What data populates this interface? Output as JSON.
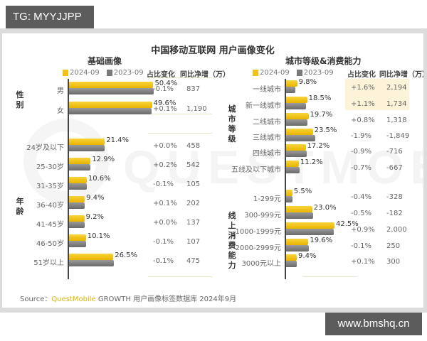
{
  "overlay": {
    "top_badge": "TG: MYYJJPP",
    "bottom_badge": "www.bmshq.cn"
  },
  "header": {
    "title": "中国移动互联网 用户画像变化",
    "left_subtitle": "基础画像",
    "right_subtitle": "城市等级&消费能力"
  },
  "legend": {
    "y2024": "2024-09",
    "y2023": "2023-09",
    "color_2024": "#f2c316",
    "color_2023": "#7a7a7a"
  },
  "columns": {
    "share_change": "占比变化",
    "net_increase": "同比净增（万）"
  },
  "groups": {
    "gender": "性别",
    "age": "年龄",
    "city": "城市等级",
    "spend": "线上消费能力"
  },
  "watermark": "QUESTMOBILE",
  "source": {
    "prefix": "Source：",
    "brand": "QuestMobile",
    "text": "GROWTH 用户画像标签数据库 2024年9月"
  },
  "chart_data": [
    {
      "type": "bar",
      "title": "基础画像 - 性别",
      "categories": [
        "男",
        "女"
      ],
      "series": [
        {
          "name": "2024-09",
          "values": [
            50.4,
            49.6
          ]
        },
        {
          "name": "2023-09",
          "values": [
            50.5,
            49.5
          ]
        }
      ],
      "labels": [
        "50.4%",
        "49.6%"
      ],
      "share_change": [
        "-0.1%",
        "+0.1%"
      ],
      "net_increase": [
        "837",
        "1,190"
      ]
    },
    {
      "type": "bar",
      "title": "基础画像 - 年龄",
      "categories": [
        "24岁及以下",
        "25-30岁",
        "31-35岁",
        "36-40岁",
        "41-45岁",
        "46-50岁",
        "51岁以上"
      ],
      "series": [
        {
          "name": "2024-09",
          "values": [
            21.4,
            12.9,
            10.6,
            9.4,
            9.2,
            10.1,
            26.5
          ]
        },
        {
          "name": "2023-09",
          "values": [
            21.4,
            12.7,
            10.7,
            9.3,
            9.2,
            10.2,
            26.6
          ]
        }
      ],
      "labels": [
        "21.4%",
        "12.9%",
        "10.6%",
        "9.4%",
        "9.2%",
        "10.1%",
        "26.5%"
      ],
      "share_change": [
        "+0.0%",
        "+0.2%",
        "-0.1%",
        "+0.1%",
        "+0.0%",
        "-0.1%",
        "-0.1%"
      ],
      "net_increase": [
        "458",
        "542",
        "105",
        "202",
        "137",
        "107",
        "475"
      ]
    },
    {
      "type": "bar",
      "title": "城市等级",
      "categories": [
        "一线城市",
        "新一线城市",
        "二线城市",
        "三线城市",
        "四线城市",
        "五线及以下城市"
      ],
      "series": [
        {
          "name": "2024-09",
          "values": [
            9.8,
            18.5,
            19.7,
            23.5,
            17.2,
            11.2
          ]
        },
        {
          "name": "2023-09",
          "values": [
            8.2,
            17.4,
            18.9,
            25.4,
            18.1,
            11.9
          ]
        }
      ],
      "labels": [
        "9.8%",
        "18.5%",
        "19.7%",
        "23.5%",
        "17.2%",
        "11.2%"
      ],
      "share_change": [
        "+1.6%",
        "+1.1%",
        "+0.8%",
        "-1.9%",
        "-0.9%",
        "-0.7%"
      ],
      "net_increase": [
        "2,194",
        "1,734",
        "1,318",
        "-1,849",
        "-716",
        "-667"
      ]
    },
    {
      "type": "bar",
      "title": "线上消费能力",
      "categories": [
        "1-299元",
        "300-999元",
        "1000-1999元",
        "2000-2999元",
        "3000元以上"
      ],
      "series": [
        {
          "name": "2024-09",
          "values": [
            5.5,
            23.0,
            42.5,
            19.6,
            9.4
          ]
        },
        {
          "name": "2023-09",
          "values": [
            5.9,
            23.5,
            41.6,
            19.7,
            9.3
          ]
        }
      ],
      "labels": [
        "5.5%",
        "23.0%",
        "42.5%",
        "19.6%",
        "9.4%"
      ],
      "share_change": [
        "-0.4%",
        "-0.5%",
        "+0.9%",
        "-0.1%",
        "+0.1%"
      ],
      "net_increase": [
        "-328",
        "-182",
        "2,000",
        "250",
        "300"
      ]
    }
  ]
}
